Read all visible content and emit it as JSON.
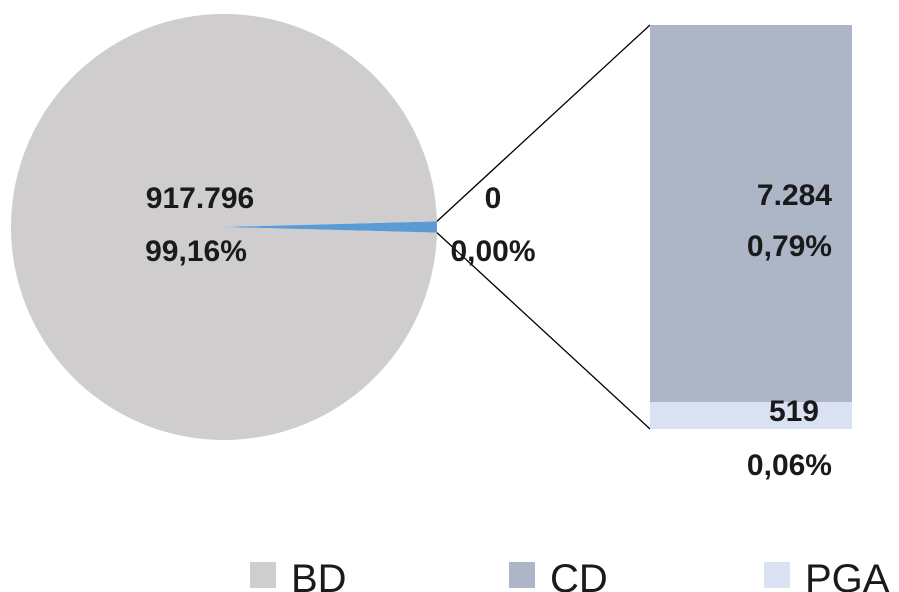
{
  "chart_data": {
    "type": "pie",
    "subtype": "bar-of-pie",
    "colors": {
      "BD": "#cfcdcd",
      "CD": "#acb6c7",
      "PGA": "#d9e1f2",
      "other_slice": "#5b9bd5",
      "connector": "#000000"
    },
    "slices": [
      {
        "name": "BD",
        "value": 917796,
        "value_label": "917.796",
        "percent_label": "99,16%"
      },
      {
        "name": "",
        "value": 0,
        "value_label": "0",
        "percent_label": "0,00%"
      }
    ],
    "bar_segments": [
      {
        "name": "CD",
        "value": 7284,
        "value_label": "7.284",
        "percent_label": "0,79%"
      },
      {
        "name": "PGA",
        "value": 519,
        "value_label": "519",
        "percent_label": "0,06%"
      }
    ],
    "legend": {
      "position": "bottom",
      "entries": [
        "BD",
        "CD",
        "PGA"
      ]
    }
  }
}
